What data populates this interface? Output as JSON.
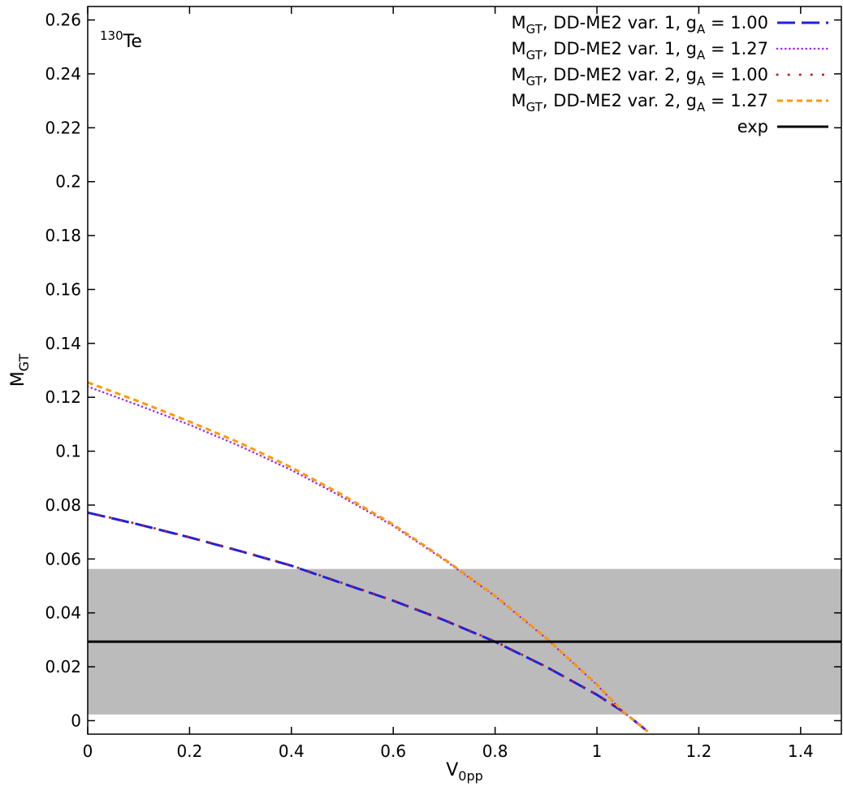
{
  "chart_data": {
    "type": "line",
    "annotation": {
      "mass": "130",
      "element": "Te"
    },
    "xlabel": {
      "main": "V",
      "sub": "0pp"
    },
    "ylabel": {
      "main": "M",
      "sub": "GT"
    },
    "xlim": [
      0,
      1.48
    ],
    "ylim": [
      -0.005,
      0.265
    ],
    "x_ticks": [
      0,
      0.2,
      0.4,
      0.6,
      0.8,
      1,
      1.2,
      1.4
    ],
    "x_tick_labels": [
      "0",
      "0.2",
      "0.4",
      "0.6",
      "0.8",
      "1",
      "1.2",
      "1.4"
    ],
    "y_ticks": [
      0,
      0.02,
      0.04,
      0.06,
      0.08,
      0.1,
      0.12,
      0.14,
      0.16,
      0.18,
      0.2,
      0.22,
      0.24,
      0.26
    ],
    "y_tick_labels": [
      "0",
      "0.02",
      "0.04",
      "0.06",
      "0.08",
      "0.1",
      "0.12",
      "0.14",
      "0.16",
      "0.18",
      "0.2",
      "0.22",
      "0.24",
      "0.26"
    ],
    "grid": false,
    "legend_position": "top-right",
    "exp": {
      "name": "exp",
      "value": 0.0293,
      "band": [
        0.0023,
        0.0563
      ],
      "color": "#000000",
      "band_color": "#bbbbbb"
    },
    "series": [
      {
        "name": "M_GT, DD-ME2 var. 1, g_A = 1.00",
        "legend": {
          "m": "M",
          "msub": "GT",
          "mid": ", DD-ME2 var. 1, g",
          "gsub": "A",
          "end": " = 1.00"
        },
        "color": "#1f1fe0",
        "style": "long-dash",
        "x": [
          0,
          0.1,
          0.2,
          0.3,
          0.4,
          0.5,
          0.6,
          0.7,
          0.8,
          0.9,
          1.0,
          1.05,
          1.1
        ],
        "y": [
          0.0772,
          0.0728,
          0.068,
          0.0629,
          0.0575,
          0.051,
          0.0445,
          0.0373,
          0.0293,
          0.02,
          0.0096,
          0.0035,
          -0.004
        ]
      },
      {
        "name": "M_GT, DD-ME2 var. 1, g_A = 1.27",
        "legend": {
          "m": "M",
          "msub": "GT",
          "mid": ", DD-ME2 var. 1, g",
          "gsub": "A",
          "end": " = 1.27"
        },
        "color": "#a020f0",
        "style": "dotted",
        "x": [
          0,
          0.1,
          0.2,
          0.3,
          0.4,
          0.5,
          0.6,
          0.7,
          0.8,
          0.9,
          1.0,
          1.05,
          1.1
        ],
        "y": [
          0.124,
          0.117,
          0.1098,
          0.1018,
          0.093,
          0.083,
          0.0723,
          0.0597,
          0.0462,
          0.0306,
          0.0133,
          0.0035,
          -0.004
        ]
      },
      {
        "name": "M_GT, DD-ME2 var. 2, g_A = 1.00",
        "legend": {
          "m": "M",
          "msub": "GT",
          "mid": ", DD-ME2 var. 2, g",
          "gsub": "A",
          "end": " = 1.00"
        },
        "color": "#b22222",
        "style": "sparse-dot",
        "x": [
          0,
          0.1,
          0.2,
          0.3,
          0.4,
          0.5,
          0.6,
          0.7,
          0.8,
          0.9,
          1.0,
          1.05,
          1.1
        ],
        "y": [
          0.0773,
          0.0729,
          0.0681,
          0.063,
          0.0576,
          0.0511,
          0.0446,
          0.0374,
          0.0294,
          0.0201,
          0.0097,
          0.0036,
          -0.0039
        ]
      },
      {
        "name": "M_GT, DD-ME2 var. 2, g_A = 1.27",
        "legend": {
          "m": "M",
          "msub": "GT",
          "mid": ", DD-ME2 var. 2, g",
          "gsub": "A",
          "end": " = 1.27"
        },
        "color": "#ff9900",
        "style": "short-dash",
        "x": [
          0,
          0.1,
          0.2,
          0.3,
          0.4,
          0.5,
          0.6,
          0.7,
          0.8,
          0.9,
          1.0,
          1.05,
          1.1
        ],
        "y": [
          0.1255,
          0.1185,
          0.111,
          0.103,
          0.094,
          0.0838,
          0.0728,
          0.06,
          0.0464,
          0.0308,
          0.0135,
          0.0036,
          -0.004
        ]
      }
    ]
  }
}
